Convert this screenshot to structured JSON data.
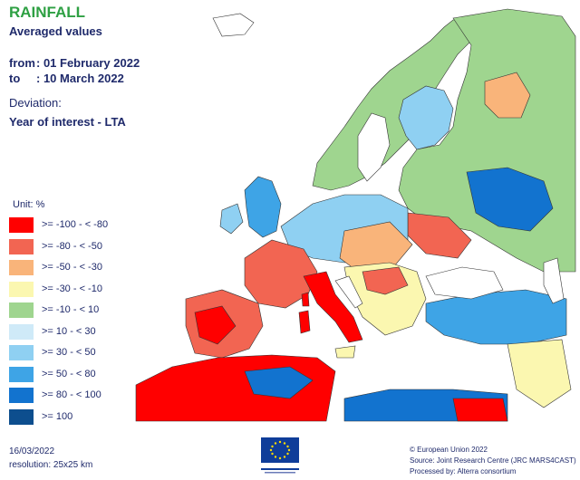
{
  "header": {
    "title": "RAINFALL",
    "subtitle": "Averaged values",
    "from_label": "from",
    "from_value": ": 01 February 2022",
    "to_label": "to",
    "to_value": ": 10 March 2022",
    "deviation_label": "Deviation:",
    "deviation_value": "Year of interest - LTA"
  },
  "legend": {
    "unit": "Unit: %",
    "classes": [
      {
        "label": ">= -100 - < -80",
        "color": "#ff0000"
      },
      {
        "label": ">= -80 - < -50",
        "color": "#f26552"
      },
      {
        "label": ">= -50 - < -30",
        "color": "#f9b47a"
      },
      {
        "label": ">= -30 - < -10",
        "color": "#fbf7b0"
      },
      {
        "label": ">= -10 - < 10",
        "color": "#9fd58f"
      },
      {
        "label": ">= 10 - < 30",
        "color": "#cfeaf8"
      },
      {
        "label": ">= 30 - < 50",
        "color": "#8fd0f2"
      },
      {
        "label": ">= 50 - < 80",
        "color": "#3ea4e6"
      },
      {
        "label": ">= 80 - < 100",
        "color": "#1273cf"
      },
      {
        "label": ">= 100",
        "color": "#0d4e8e"
      }
    ]
  },
  "footer": {
    "date": "16/03/2022",
    "resolution": "resolution: 25x25 km",
    "copyright": "© European Union 2022",
    "source": "Source: Joint Research Centre (JRC MARS4CAST)",
    "processed": "Processed by: Alterra consortium"
  },
  "colors": {
    "sea": "#ffffff",
    "border": "#2a2a2a"
  }
}
